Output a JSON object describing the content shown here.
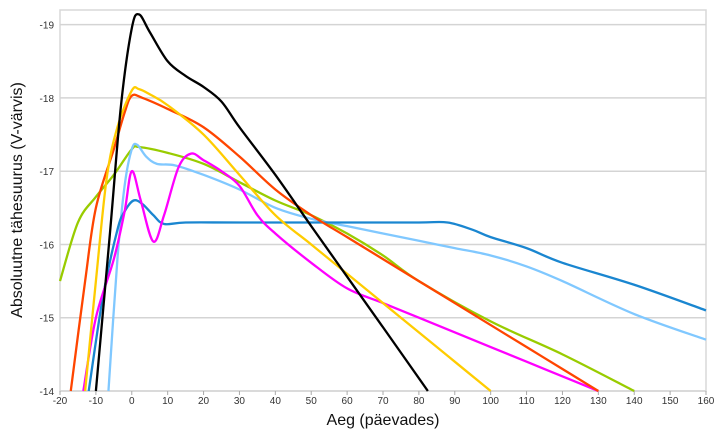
{
  "chart_data": {
    "type": "line",
    "title": "",
    "xlabel": "Aeg (päevades)",
    "ylabel": "Absoluutne tähesuurus (V-värvis)",
    "xlim": [
      -20,
      160
    ],
    "ylim": [
      -19.2,
      -14
    ],
    "y_inverted": true,
    "grid": "horizontal",
    "legend": "none",
    "x_ticks": [
      "-20",
      "-10",
      "0",
      "10",
      "20",
      "30",
      "40",
      "50",
      "60",
      "70",
      "80",
      "90",
      "100",
      "110",
      "120",
      "130",
      "140",
      "150",
      "160"
    ],
    "y_ticks": [
      "-19",
      "-18",
      "-17",
      "-16",
      "-15",
      "-14"
    ],
    "series": [
      {
        "color": "#99cc00",
        "points": [
          [
            -20,
            -15.5
          ],
          [
            -15,
            -16.3
          ],
          [
            -10,
            -16.65
          ],
          [
            -5,
            -16.95
          ],
          [
            0,
            -17.3
          ],
          [
            2,
            -17.33
          ],
          [
            10,
            -17.25
          ],
          [
            20,
            -17.1
          ],
          [
            30,
            -16.85
          ],
          [
            40,
            -16.6
          ],
          [
            50,
            -16.4
          ],
          [
            60,
            -16.15
          ],
          [
            70,
            -15.85
          ],
          [
            80,
            -15.5
          ],
          [
            100,
            -14.95
          ],
          [
            120,
            -14.5
          ],
          [
            140,
            -14.0
          ]
        ]
      },
      {
        "color": "#80c8ff",
        "points": [
          [
            -6.5,
            -14
          ],
          [
            -4,
            -15.8
          ],
          [
            -2,
            -16.8
          ],
          [
            0,
            -17.3
          ],
          [
            1.5,
            -17.36
          ],
          [
            4,
            -17.2
          ],
          [
            7,
            -17.1
          ],
          [
            12,
            -17.08
          ],
          [
            20,
            -16.95
          ],
          [
            30,
            -16.75
          ],
          [
            40,
            -16.5
          ],
          [
            50,
            -16.35
          ],
          [
            60,
            -16.25
          ],
          [
            70,
            -16.15
          ],
          [
            80,
            -16.05
          ],
          [
            90,
            -15.95
          ],
          [
            100,
            -15.85
          ],
          [
            110,
            -15.7
          ],
          [
            120,
            -15.5
          ],
          [
            140,
            -15.05
          ],
          [
            160,
            -14.7
          ]
        ]
      },
      {
        "color": "#1a86d0",
        "points": [
          [
            -12,
            -14
          ],
          [
            -8,
            -15.3
          ],
          [
            -4,
            -16.2
          ],
          [
            -2,
            -16.45
          ],
          [
            0.5,
            -16.6
          ],
          [
            3,
            -16.55
          ],
          [
            6,
            -16.4
          ],
          [
            9,
            -16.28
          ],
          [
            15,
            -16.3
          ],
          [
            30,
            -16.3
          ],
          [
            60,
            -16.3
          ],
          [
            80,
            -16.3
          ],
          [
            88,
            -16.3
          ],
          [
            95,
            -16.2
          ],
          [
            100,
            -16.1
          ],
          [
            110,
            -15.95
          ],
          [
            120,
            -15.75
          ],
          [
            140,
            -15.45
          ],
          [
            160,
            -15.1
          ]
        ]
      },
      {
        "color": "#ff00ff",
        "points": [
          [
            -13.5,
            -14
          ],
          [
            -10,
            -15.0
          ],
          [
            -5,
            -15.8
          ],
          [
            -2,
            -16.45
          ],
          [
            0,
            -17.0
          ],
          [
            2.5,
            -16.6
          ],
          [
            6,
            -16.04
          ],
          [
            9,
            -16.4
          ],
          [
            13,
            -17.05
          ],
          [
            16.5,
            -17.24
          ],
          [
            20,
            -17.15
          ],
          [
            25,
            -17.0
          ],
          [
            30,
            -16.8
          ],
          [
            35,
            -16.4
          ],
          [
            40,
            -16.15
          ],
          [
            50,
            -15.75
          ],
          [
            60,
            -15.4
          ],
          [
            70,
            -15.2
          ],
          [
            80,
            -15.0
          ],
          [
            100,
            -14.6
          ],
          [
            115,
            -14.3
          ],
          [
            130,
            -14.0
          ]
        ]
      },
      {
        "color": "#ff4500",
        "points": [
          [
            -17,
            -14
          ],
          [
            -13,
            -15.5
          ],
          [
            -10,
            -16.5
          ],
          [
            -5,
            -17.3
          ],
          [
            -2,
            -17.8
          ],
          [
            0,
            -18.03
          ],
          [
            3,
            -18.0
          ],
          [
            10,
            -17.85
          ],
          [
            20,
            -17.6
          ],
          [
            30,
            -17.2
          ],
          [
            40,
            -16.75
          ],
          [
            50,
            -16.4
          ],
          [
            60,
            -16.1
          ],
          [
            70,
            -15.8
          ],
          [
            80,
            -15.5
          ],
          [
            90,
            -15.2
          ],
          [
            100,
            -14.9
          ],
          [
            110,
            -14.6
          ],
          [
            120,
            -14.3
          ],
          [
            130,
            -14.0
          ]
        ]
      },
      {
        "color": "#ffcc00",
        "points": [
          [
            -13,
            -14
          ],
          [
            -10,
            -15.5
          ],
          [
            -7,
            -16.9
          ],
          [
            -4,
            -17.6
          ],
          [
            0,
            -18.1
          ],
          [
            2,
            -18.12
          ],
          [
            5,
            -18.05
          ],
          [
            10,
            -17.9
          ],
          [
            20,
            -17.5
          ],
          [
            30,
            -16.95
          ],
          [
            40,
            -16.4
          ],
          [
            50,
            -16.0
          ],
          [
            60,
            -15.6
          ],
          [
            70,
            -15.2
          ],
          [
            80,
            -14.8
          ],
          [
            90,
            -14.4
          ],
          [
            100,
            -14.0
          ]
        ]
      },
      {
        "color": "#000000",
        "points": [
          [
            -10,
            -14
          ],
          [
            -6,
            -16.2
          ],
          [
            -3,
            -17.9
          ],
          [
            0,
            -18.95
          ],
          [
            2,
            -19.14
          ],
          [
            5,
            -18.9
          ],
          [
            10,
            -18.5
          ],
          [
            15,
            -18.3
          ],
          [
            20,
            -18.15
          ],
          [
            25,
            -17.95
          ],
          [
            30,
            -17.6
          ],
          [
            40,
            -16.95
          ],
          [
            50,
            -16.25
          ],
          [
            60,
            -15.56
          ],
          [
            70,
            -14.87
          ],
          [
            82.5,
            -14.0
          ]
        ]
      }
    ]
  }
}
